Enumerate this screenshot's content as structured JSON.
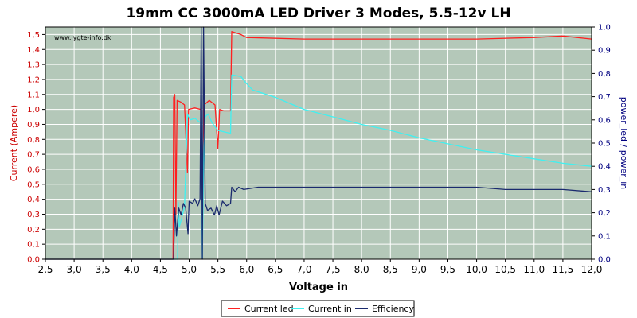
{
  "chart_data": {
    "type": "line",
    "title": "19mm CC 3000mA LED Driver 3 Modes, 5.5-12v LH",
    "watermark": "www.lygte-info.dk",
    "xlabel": "Voltage in",
    "ylabel_left": "Current (Ampere)",
    "ylabel_right": "power_led / power_in",
    "xlim": [
      2.5,
      12.0
    ],
    "ylim_left": [
      0.0,
      1.55
    ],
    "ylim_right": [
      0.0,
      1.0
    ],
    "x_ticks": [
      "2,5",
      "3,0",
      "3,5",
      "4,0",
      "4,5",
      "5,0",
      "5,5",
      "6,0",
      "6,5",
      "7,0",
      "7,5",
      "8,0",
      "8,5",
      "9,0",
      "9,5",
      "10,0",
      "10,5",
      "11,0",
      "11,5",
      "12,0"
    ],
    "y_left_ticks": [
      "0,0",
      "0,1",
      "0,2",
      "0,3",
      "0,4",
      "0,5",
      "0,6",
      "0,7",
      "0,8",
      "0,9",
      "1,0",
      "1,1",
      "1,2",
      "1,3",
      "1,4",
      "1,5"
    ],
    "y_right_ticks": [
      "0,0",
      "0,1",
      "0,2",
      "0,3",
      "0,4",
      "0,5",
      "0,6",
      "0,7",
      "0,8",
      "0,9",
      "1,0"
    ],
    "grid": true,
    "legend_position": "bottom",
    "colors": {
      "plot_bg": "#b4c8b9",
      "grid": "#ffffff",
      "left_axis": "#cc0000",
      "right_axis": "#000080"
    },
    "series": [
      {
        "name": "Current led",
        "color": "#ff2020",
        "axis": "left",
        "points": [
          [
            2.5,
            0.0
          ],
          [
            4.72,
            0.0
          ],
          [
            4.73,
            1.08
          ],
          [
            4.75,
            1.1
          ],
          [
            4.77,
            0.3
          ],
          [
            4.79,
            1.06
          ],
          [
            4.85,
            1.05
          ],
          [
            4.92,
            1.03
          ],
          [
            4.97,
            0.58
          ],
          [
            4.99,
            1.0
          ],
          [
            5.1,
            1.01
          ],
          [
            5.2,
            1.0
          ],
          [
            5.23,
            0.58
          ],
          [
            5.26,
            1.03
          ],
          [
            5.35,
            1.06
          ],
          [
            5.45,
            1.03
          ],
          [
            5.5,
            0.74
          ],
          [
            5.53,
            1.0
          ],
          [
            5.6,
            0.99
          ],
          [
            5.72,
            0.99
          ],
          [
            5.74,
            1.52
          ],
          [
            5.9,
            1.5
          ],
          [
            6.0,
            1.48
          ],
          [
            7.0,
            1.47
          ],
          [
            8.0,
            1.47
          ],
          [
            9.0,
            1.47
          ],
          [
            10.0,
            1.47
          ],
          [
            11.0,
            1.48
          ],
          [
            11.5,
            1.49
          ],
          [
            12.0,
            1.47
          ]
        ]
      },
      {
        "name": "Current in",
        "color": "#40f0f0",
        "axis": "left",
        "points": [
          [
            2.5,
            0.0
          ],
          [
            4.8,
            0.0
          ],
          [
            4.81,
            0.38
          ],
          [
            4.83,
            0.22
          ],
          [
            4.86,
            0.26
          ],
          [
            4.92,
            0.35
          ],
          [
            4.97,
            0.97
          ],
          [
            5.02,
            0.93
          ],
          [
            5.1,
            0.94
          ],
          [
            5.2,
            0.91
          ],
          [
            5.23,
            0.0
          ],
          [
            5.25,
            0.63
          ],
          [
            5.28,
            0.95
          ],
          [
            5.33,
            0.97
          ],
          [
            5.4,
            0.91
          ],
          [
            5.5,
            0.86
          ],
          [
            5.72,
            0.84
          ],
          [
            5.74,
            1.23
          ],
          [
            5.9,
            1.22
          ],
          [
            5.98,
            1.18
          ],
          [
            6.1,
            1.13
          ],
          [
            6.5,
            1.08
          ],
          [
            7.0,
            1.0
          ],
          [
            7.5,
            0.95
          ],
          [
            8.0,
            0.9
          ],
          [
            8.5,
            0.86
          ],
          [
            9.0,
            0.81
          ],
          [
            9.5,
            0.77
          ],
          [
            10.0,
            0.73
          ],
          [
            10.5,
            0.7
          ],
          [
            11.0,
            0.67
          ],
          [
            11.5,
            0.64
          ],
          [
            12.0,
            0.62
          ]
        ]
      },
      {
        "name": "Efficiency",
        "color": "#1a2a6e",
        "axis": "right",
        "points": [
          [
            2.5,
            0.0
          ],
          [
            4.73,
            0.0
          ],
          [
            4.75,
            0.22
          ],
          [
            4.78,
            0.1
          ],
          [
            4.82,
            0.22
          ],
          [
            4.86,
            0.19
          ],
          [
            4.9,
            0.24
          ],
          [
            4.94,
            0.22
          ],
          [
            4.98,
            0.11
          ],
          [
            5.0,
            0.25
          ],
          [
            5.06,
            0.24
          ],
          [
            5.1,
            0.26
          ],
          [
            5.15,
            0.23
          ],
          [
            5.19,
            0.26
          ],
          [
            5.21,
            1.0
          ],
          [
            5.23,
            0.0
          ],
          [
            5.25,
            1.0
          ],
          [
            5.28,
            0.24
          ],
          [
            5.32,
            0.21
          ],
          [
            5.38,
            0.22
          ],
          [
            5.44,
            0.19
          ],
          [
            5.48,
            0.23
          ],
          [
            5.52,
            0.19
          ],
          [
            5.58,
            0.25
          ],
          [
            5.65,
            0.23
          ],
          [
            5.72,
            0.24
          ],
          [
            5.74,
            0.31
          ],
          [
            5.8,
            0.29
          ],
          [
            5.86,
            0.31
          ],
          [
            5.95,
            0.3
          ],
          [
            6.2,
            0.31
          ],
          [
            7.0,
            0.31
          ],
          [
            8.0,
            0.31
          ],
          [
            9.0,
            0.31
          ],
          [
            10.0,
            0.31
          ],
          [
            10.5,
            0.3
          ],
          [
            11.0,
            0.3
          ],
          [
            11.5,
            0.3
          ],
          [
            12.0,
            0.29
          ]
        ]
      }
    ]
  }
}
